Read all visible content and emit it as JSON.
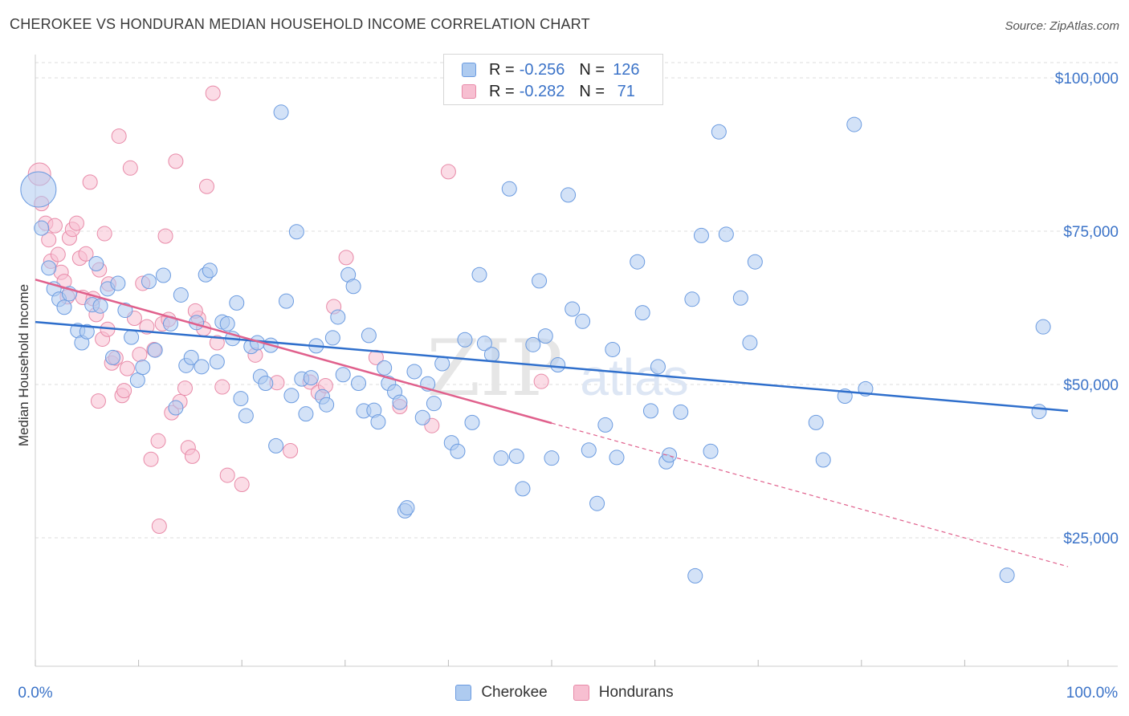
{
  "header": {
    "title": "CHEROKEE VS HONDURAN MEDIAN HOUSEHOLD INCOME CORRELATION CHART",
    "source": "Source: ZipAtlas.com"
  },
  "legend": {
    "rows": [
      {
        "r_label": "R =",
        "r_value": "-0.256",
        "n_label": "N =",
        "n_value": "126",
        "color": "#aecbf0",
        "stroke": "#6b9be0"
      },
      {
        "r_label": "R =",
        "r_value": "-0.282",
        "n_label": "N =",
        "n_value": " 71",
        "color": "#f7bfd1",
        "stroke": "#e88aa8"
      }
    ],
    "bottom": [
      {
        "label": "Cherokee",
        "color": "#aecbf0",
        "stroke": "#6b9be0"
      },
      {
        "label": "Hondurans",
        "color": "#f7bfd1",
        "stroke": "#e88aa8"
      }
    ]
  },
  "watermark": {
    "zip": "ZIP",
    "atlas": "atlas"
  },
  "chart_data": {
    "type": "scatter",
    "title": "CHEROKEE VS HONDURAN MEDIAN HOUSEHOLD INCOME CORRELATION CHART",
    "xlabel": "",
    "ylabel": "Median Household Income",
    "xlim": [
      0,
      100
    ],
    "ylim": [
      0,
      105000
    ],
    "x_tick_labels": [
      "0.0%",
      "100.0%"
    ],
    "y_ticks": [
      25000,
      50000,
      75000,
      100000
    ],
    "y_tick_labels": [
      "$25,000",
      "$50,000",
      "$75,000",
      "$100,000"
    ],
    "grid": true,
    "legend_position": "top-center",
    "colors": {
      "cherokee_fill": "#aecbf0",
      "cherokee_stroke": "#6b9be0",
      "cherokee_line": "#2f6fcc",
      "honduran_fill": "#f7bfd1",
      "honduran_stroke": "#e88aa8",
      "honduran_line": "#e0608c",
      "axis_text": "#3b73c8"
    },
    "series": [
      {
        "name": "Cherokee",
        "trend": {
          "x": [
            0,
            100
          ],
          "y": [
            60200,
            45700
          ]
        },
        "points": [
          [
            0.3,
            81800
          ],
          [
            0.6,
            75500
          ],
          [
            1.3,
            69000
          ],
          [
            1.8,
            65600
          ],
          [
            2.3,
            63900
          ],
          [
            2.8,
            62600
          ],
          [
            3.3,
            64800
          ],
          [
            4.1,
            58800
          ],
          [
            4.5,
            56800
          ],
          [
            5.0,
            58600
          ],
          [
            5.5,
            63000
          ],
          [
            5.9,
            69700
          ],
          [
            6.3,
            62800
          ],
          [
            7.0,
            65600
          ],
          [
            7.5,
            54400
          ],
          [
            8.0,
            66500
          ],
          [
            8.7,
            62100
          ],
          [
            9.3,
            57700
          ],
          [
            9.9,
            50700
          ],
          [
            10.4,
            52800
          ],
          [
            11.0,
            66800
          ],
          [
            11.6,
            55600
          ],
          [
            12.4,
            67800
          ],
          [
            13.1,
            59900
          ],
          [
            13.6,
            46200
          ],
          [
            14.1,
            64600
          ],
          [
            14.6,
            53100
          ],
          [
            15.1,
            54400
          ],
          [
            15.6,
            60100
          ],
          [
            16.1,
            52900
          ],
          [
            16.5,
            67900
          ],
          [
            16.9,
            68600
          ],
          [
            17.6,
            53700
          ],
          [
            18.1,
            60200
          ],
          [
            18.6,
            59900
          ],
          [
            19.1,
            57500
          ],
          [
            19.5,
            63300
          ],
          [
            19.9,
            47700
          ],
          [
            20.4,
            44900
          ],
          [
            20.9,
            56200
          ],
          [
            21.5,
            56800
          ],
          [
            21.8,
            51300
          ],
          [
            22.3,
            50200
          ],
          [
            22.8,
            56400
          ],
          [
            23.3,
            40000
          ],
          [
            23.8,
            94400
          ],
          [
            24.3,
            63600
          ],
          [
            24.8,
            48200
          ],
          [
            25.3,
            74900
          ],
          [
            25.8,
            50900
          ],
          [
            26.2,
            45200
          ],
          [
            26.7,
            51100
          ],
          [
            27.2,
            56300
          ],
          [
            27.8,
            48000
          ],
          [
            28.2,
            46700
          ],
          [
            28.8,
            57600
          ],
          [
            29.3,
            61000
          ],
          [
            29.8,
            51600
          ],
          [
            30.3,
            67900
          ],
          [
            30.8,
            66000
          ],
          [
            31.3,
            50200
          ],
          [
            31.8,
            45700
          ],
          [
            32.3,
            58000
          ],
          [
            32.8,
            45800
          ],
          [
            33.2,
            43900
          ],
          [
            33.8,
            52700
          ],
          [
            34.2,
            50200
          ],
          [
            34.8,
            48800
          ],
          [
            35.3,
            47100
          ],
          [
            35.8,
            29400
          ],
          [
            36.0,
            29900
          ],
          [
            36.7,
            52100
          ],
          [
            37.5,
            44600
          ],
          [
            38.0,
            50100
          ],
          [
            38.6,
            46900
          ],
          [
            39.4,
            53400
          ],
          [
            40.3,
            40500
          ],
          [
            40.9,
            39100
          ],
          [
            41.6,
            57300
          ],
          [
            42.3,
            43800
          ],
          [
            43.0,
            67900
          ],
          [
            43.5,
            56700
          ],
          [
            44.2,
            54900
          ],
          [
            45.1,
            38000
          ],
          [
            45.9,
            81900
          ],
          [
            46.6,
            38300
          ],
          [
            47.2,
            33000
          ],
          [
            48.2,
            56500
          ],
          [
            48.8,
            66900
          ],
          [
            49.4,
            57900
          ],
          [
            50.0,
            38000
          ],
          [
            50.6,
            53200
          ],
          [
            51.6,
            80900
          ],
          [
            52.0,
            62300
          ],
          [
            53.0,
            60300
          ],
          [
            53.6,
            39300
          ],
          [
            54.4,
            30600
          ],
          [
            55.2,
            43400
          ],
          [
            55.9,
            55700
          ],
          [
            56.3,
            38100
          ],
          [
            58.3,
            70000
          ],
          [
            58.8,
            61700
          ],
          [
            59.6,
            45700
          ],
          [
            60.3,
            52900
          ],
          [
            61.1,
            37400
          ],
          [
            61.4,
            38500
          ],
          [
            62.5,
            45500
          ],
          [
            63.6,
            63900
          ],
          [
            64.5,
            74300
          ],
          [
            65.4,
            39100
          ],
          [
            66.2,
            91200
          ],
          [
            66.9,
            74500
          ],
          [
            68.3,
            64100
          ],
          [
            69.2,
            56800
          ],
          [
            69.7,
            70000
          ],
          [
            75.6,
            43800
          ],
          [
            76.3,
            37700
          ],
          [
            78.4,
            48100
          ],
          [
            79.3,
            92400
          ],
          [
            80.4,
            49300
          ],
          [
            97.2,
            45600
          ],
          [
            97.6,
            59400
          ],
          [
            63.9,
            18800
          ],
          [
            94.1,
            18900
          ]
        ]
      },
      {
        "name": "Hondurans",
        "trend": {
          "x": [
            0,
            50
          ],
          "y": [
            67100,
            43700
          ]
        },
        "trend_extension": {
          "x": [
            50,
            100
          ],
          "y": [
            43700,
            20300
          ]
        },
        "points": [
          [
            0.4,
            84300
          ],
          [
            0.6,
            79500
          ],
          [
            1.0,
            76300
          ],
          [
            1.3,
            73600
          ],
          [
            1.5,
            70100
          ],
          [
            1.9,
            75900
          ],
          [
            2.2,
            71200
          ],
          [
            2.5,
            68300
          ],
          [
            2.8,
            66800
          ],
          [
            3.1,
            64300
          ],
          [
            3.3,
            73900
          ],
          [
            3.6,
            75300
          ],
          [
            4.0,
            76300
          ],
          [
            4.3,
            70600
          ],
          [
            4.6,
            64200
          ],
          [
            4.9,
            71300
          ],
          [
            5.3,
            83000
          ],
          [
            5.6,
            64000
          ],
          [
            5.9,
            61400
          ],
          [
            6.2,
            68700
          ],
          [
            6.5,
            57400
          ],
          [
            6.7,
            74600
          ],
          [
            7.1,
            66400
          ],
          [
            7.4,
            53500
          ],
          [
            7.8,
            54300
          ],
          [
            8.1,
            90500
          ],
          [
            8.4,
            48200
          ],
          [
            8.6,
            49000
          ],
          [
            8.9,
            52600
          ],
          [
            9.2,
            85300
          ],
          [
            9.6,
            60800
          ],
          [
            10.1,
            54900
          ],
          [
            10.4,
            66500
          ],
          [
            10.8,
            59400
          ],
          [
            11.2,
            37800
          ],
          [
            11.5,
            55700
          ],
          [
            11.9,
            40800
          ],
          [
            12.3,
            59900
          ],
          [
            12.6,
            74200
          ],
          [
            12.9,
            60600
          ],
          [
            13.2,
            45400
          ],
          [
            13.6,
            86400
          ],
          [
            14.0,
            47200
          ],
          [
            14.5,
            49400
          ],
          [
            14.8,
            39700
          ],
          [
            15.2,
            38300
          ],
          [
            15.8,
            60800
          ],
          [
            16.3,
            59100
          ],
          [
            16.6,
            82300
          ],
          [
            17.2,
            97500
          ],
          [
            17.6,
            56800
          ],
          [
            18.1,
            49600
          ],
          [
            18.6,
            35200
          ],
          [
            20.0,
            33700
          ],
          [
            21.3,
            54800
          ],
          [
            23.4,
            50300
          ],
          [
            24.7,
            39200
          ],
          [
            26.6,
            50400
          ],
          [
            27.4,
            48700
          ],
          [
            28.1,
            49800
          ],
          [
            28.9,
            62700
          ],
          [
            30.1,
            70700
          ],
          [
            33.0,
            54400
          ],
          [
            35.3,
            46400
          ],
          [
            38.4,
            43300
          ],
          [
            40.0,
            84700
          ],
          [
            49.0,
            50500
          ],
          [
            7.0,
            59000
          ],
          [
            15.5,
            62000
          ],
          [
            12.0,
            26900
          ],
          [
            6.1,
            47300
          ]
        ]
      }
    ]
  }
}
